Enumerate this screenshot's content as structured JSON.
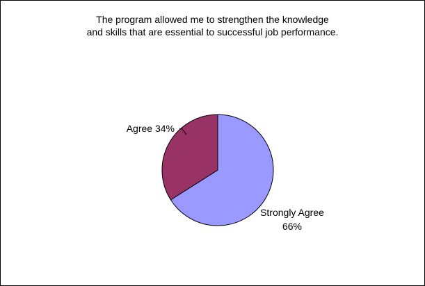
{
  "chart_data": {
    "type": "pie",
    "title_lines": [
      "The program allowed me to strengthen the knowledge",
      "and skills that are essential to successful job performance."
    ],
    "slices": [
      {
        "label": "Strongly Agree",
        "percent_label": "66%",
        "value": 66,
        "color": "#9999ff"
      },
      {
        "label": "Agree",
        "percent_label": "34%",
        "value": 34,
        "color": "#993366"
      }
    ]
  }
}
